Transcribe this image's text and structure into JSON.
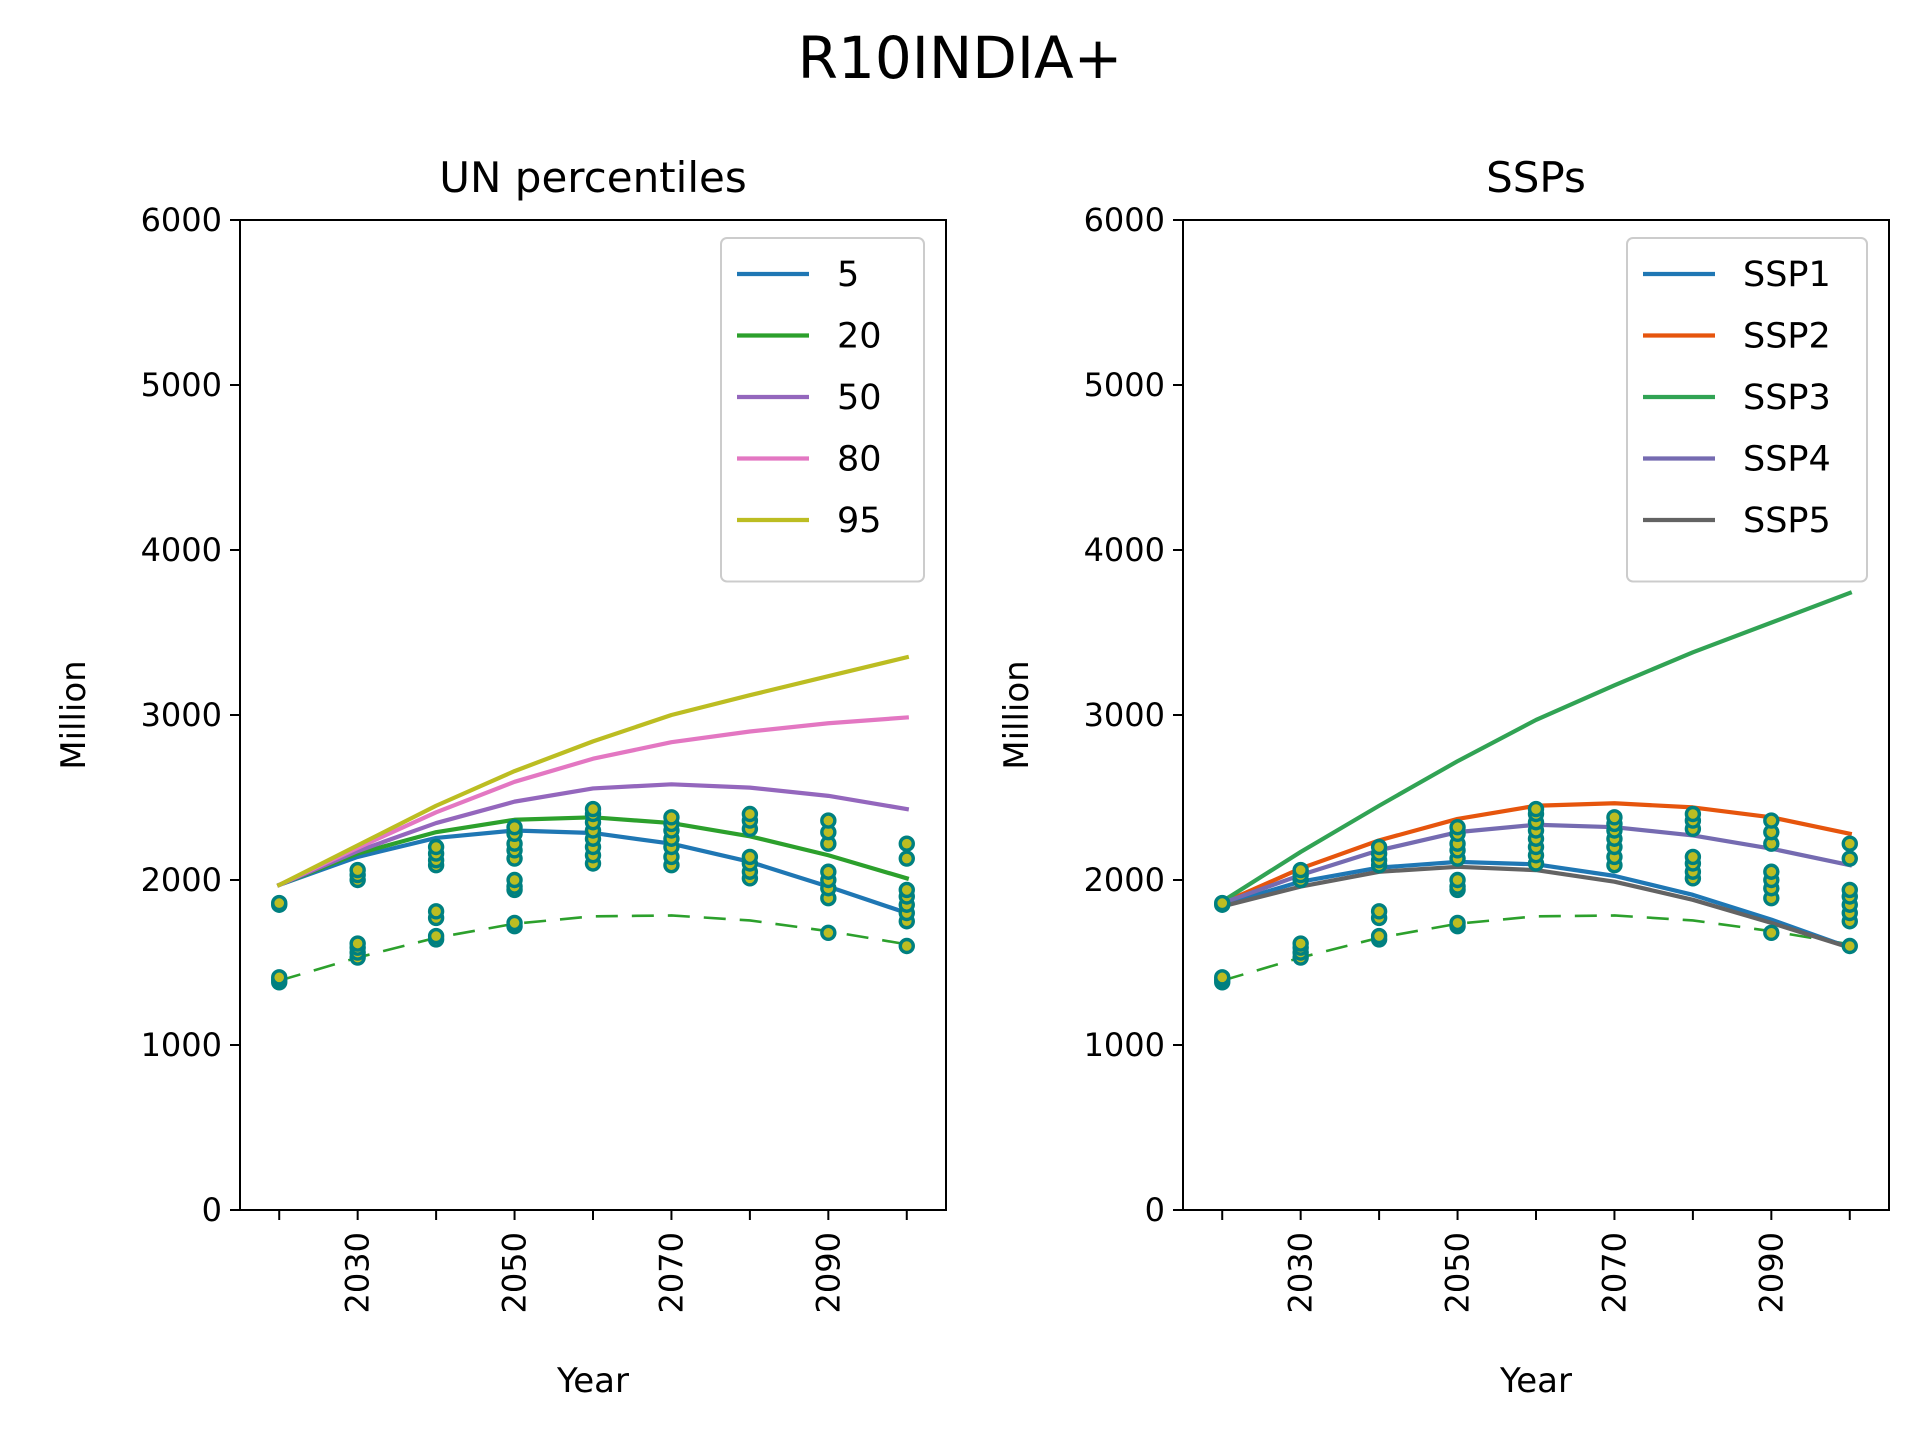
{
  "figure": {
    "suptitle": "R10INDIA+"
  },
  "chart_data": [
    {
      "type": "line",
      "title": "UN percentiles",
      "xlabel": "Year",
      "ylabel": "Million",
      "xlim": [
        2015,
        2105
      ],
      "ylim": [
        0,
        6000
      ],
      "x_ticks": [
        2030,
        2050,
        2070,
        2090
      ],
      "x_minor_ticks": [
        2020,
        2030,
        2040,
        2050,
        2060,
        2070,
        2080,
        2090,
        2100
      ],
      "y_ticks": [
        0,
        1000,
        2000,
        3000,
        4000,
        5000,
        6000
      ],
      "legend_position": "top-right",
      "x": [
        2020,
        2030,
        2040,
        2050,
        2060,
        2070,
        2080,
        2090,
        2100
      ],
      "series": [
        {
          "name": "5",
          "color": "#1f77b4",
          "values": [
            1970,
            2140,
            2255,
            2300,
            2285,
            2220,
            2110,
            1960,
            1800
          ]
        },
        {
          "name": "20",
          "color": "#2ca02c",
          "values": [
            1970,
            2160,
            2290,
            2365,
            2380,
            2345,
            2265,
            2150,
            2010
          ]
        },
        {
          "name": "50",
          "color": "#9467bd",
          "values": [
            1970,
            2175,
            2345,
            2475,
            2555,
            2580,
            2560,
            2510,
            2430
          ]
        },
        {
          "name": "80",
          "color": "#e377c2",
          "values": [
            1970,
            2195,
            2410,
            2595,
            2735,
            2835,
            2900,
            2950,
            2985
          ]
        },
        {
          "name": "95",
          "color": "#bcbd22",
          "values": [
            1970,
            2210,
            2450,
            2660,
            2840,
            3000,
            3120,
            3235,
            3350
          ]
        }
      ],
      "reference_line": {
        "color": "#2ca02c",
        "style": "dashed",
        "values": [
          1390,
          1530,
          1650,
          1735,
          1780,
          1785,
          1755,
          1690,
          1610
        ]
      },
      "markers": {
        "edge_color": "#008080",
        "face_color": "#bcbd22",
        "x": [
          2020,
          2030,
          2040,
          2050,
          2060,
          2070,
          2080,
          2090,
          2100
        ],
        "values": [
          [
            1380,
            1395,
            1410,
            1850,
            1860
          ],
          [
            1530,
            1560,
            1590,
            1615,
            2000,
            2030,
            2060
          ],
          [
            1640,
            1660,
            1770,
            1810,
            2090,
            2120,
            2160,
            2200
          ],
          [
            1720,
            1740,
            1940,
            1960,
            2000,
            2130,
            2180,
            2220,
            2280,
            2320
          ],
          [
            2100,
            2150,
            2200,
            2250,
            2300,
            2350,
            2400,
            2430
          ],
          [
            2090,
            2140,
            2200,
            2250,
            2300,
            2340,
            2380
          ],
          [
            2010,
            2050,
            2100,
            2140,
            2310,
            2360,
            2400
          ],
          [
            1680,
            1890,
            1950,
            2000,
            2050,
            2220,
            2290,
            2360
          ],
          [
            1600,
            1750,
            1800,
            1850,
            1900,
            1940,
            2130,
            2220
          ]
        ]
      }
    },
    {
      "type": "line",
      "title": "SSPs",
      "xlabel": "Year",
      "ylabel": "Million",
      "xlim": [
        2015,
        2105
      ],
      "ylim": [
        0,
        6000
      ],
      "x_ticks": [
        2030,
        2050,
        2070,
        2090
      ],
      "x_minor_ticks": [
        2020,
        2030,
        2040,
        2050,
        2060,
        2070,
        2080,
        2090,
        2100
      ],
      "y_ticks": [
        0,
        1000,
        2000,
        3000,
        4000,
        5000,
        6000
      ],
      "legend_position": "top-right",
      "x": [
        2020,
        2030,
        2040,
        2050,
        2060,
        2070,
        2080,
        2090,
        2100
      ],
      "series": [
        {
          "name": "SSP1",
          "color": "#1f77b4",
          "values": [
            1850,
            1990,
            2075,
            2110,
            2095,
            2025,
            1910,
            1760,
            1590
          ]
        },
        {
          "name": "SSP2",
          "color": "#e6550d",
          "values": [
            1860,
            2070,
            2240,
            2370,
            2450,
            2465,
            2440,
            2380,
            2280
          ]
        },
        {
          "name": "SSP3",
          "color": "#31a354",
          "values": [
            1870,
            2170,
            2450,
            2720,
            2970,
            3180,
            3380,
            3560,
            3740
          ]
        },
        {
          "name": "SSP4",
          "color": "#756bb1",
          "values": [
            1860,
            2030,
            2180,
            2290,
            2335,
            2320,
            2270,
            2190,
            2090
          ]
        },
        {
          "name": "SSP5",
          "color": "#636363",
          "values": [
            1840,
            1960,
            2050,
            2080,
            2060,
            1990,
            1880,
            1740,
            1590
          ]
        }
      ],
      "reference_line": {
        "color": "#2ca02c",
        "style": "dashed",
        "values": [
          1390,
          1530,
          1650,
          1735,
          1780,
          1785,
          1755,
          1690,
          1610
        ]
      },
      "markers": {
        "edge_color": "#008080",
        "face_color": "#bcbd22",
        "x": [
          2020,
          2030,
          2040,
          2050,
          2060,
          2070,
          2080,
          2090,
          2100
        ],
        "values": [
          [
            1380,
            1395,
            1410,
            1850,
            1860
          ],
          [
            1530,
            1560,
            1590,
            1615,
            2000,
            2030,
            2060
          ],
          [
            1640,
            1660,
            1770,
            1810,
            2090,
            2120,
            2160,
            2200
          ],
          [
            1720,
            1740,
            1940,
            1960,
            2000,
            2130,
            2180,
            2220,
            2280,
            2320
          ],
          [
            2100,
            2150,
            2200,
            2250,
            2300,
            2350,
            2400,
            2430
          ],
          [
            2090,
            2140,
            2200,
            2250,
            2300,
            2340,
            2380
          ],
          [
            2010,
            2050,
            2100,
            2140,
            2310,
            2360,
            2400
          ],
          [
            1680,
            1890,
            1950,
            2000,
            2050,
            2220,
            2290,
            2360
          ],
          [
            1600,
            1750,
            1800,
            1850,
            1900,
            1940,
            2130,
            2220
          ]
        ]
      }
    }
  ]
}
